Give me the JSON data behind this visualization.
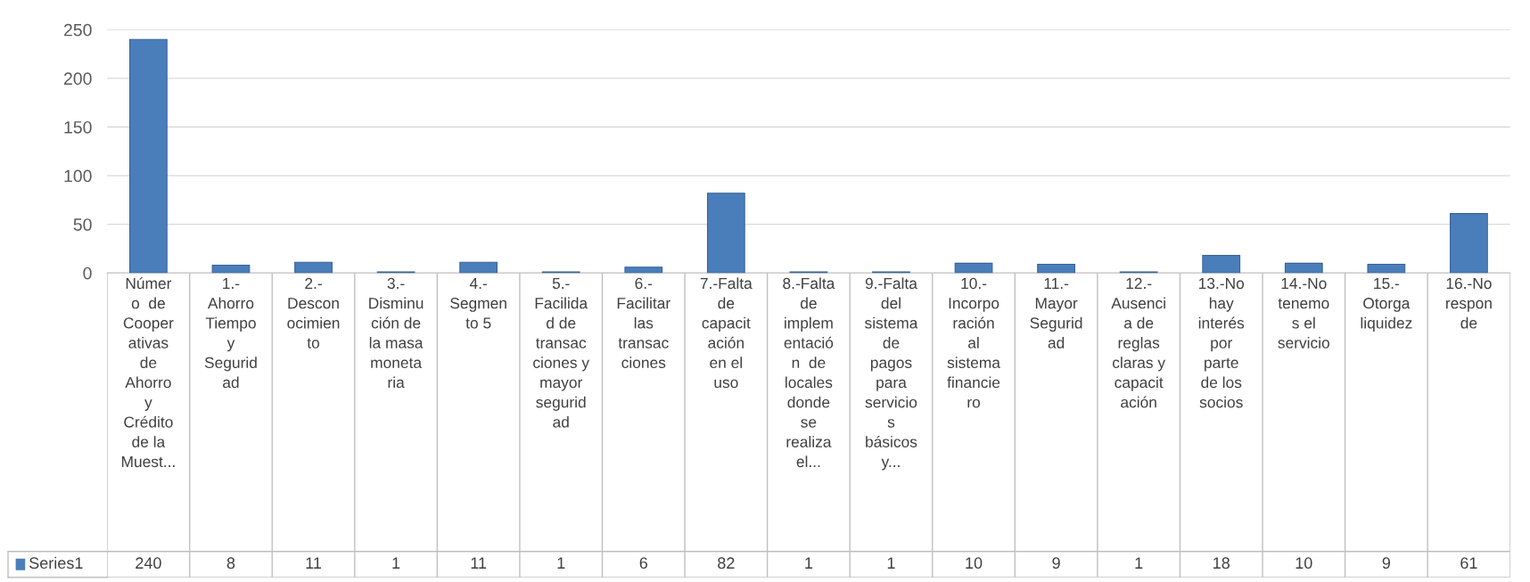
{
  "chart_data": {
    "type": "bar",
    "categories": [
      "Númer\no  de\nCooper\nativas\nde\nAhorro\ny\nCrédito\nde la\nMuest...",
      "1.-\nAhorro\nTiempo\ny\nSegurid\nad",
      "2.-\nDescon\nocimien\nto",
      "3.-\nDisminu\nción de\nla masa\nmoneta\nria",
      "4.-\nSegmen\nto 5",
      "5.-\nFacilida\nd de\ntransac\nciones y\nmayor\nsegurid\nad",
      "6.-\nFacilitar\nlas\ntransac\nciones",
      "7.-Falta\nde\ncapacit\nación\nen el\nuso",
      "8.-Falta\nde\nimplem\nentació\nn  de\nlocales\ndonde\nse\nrealiza\nel...",
      "9.-Falta\ndel\nsistema\nde\npagos\npara\nservicio\ns\nbásicos\ny...",
      "10.-\nIncorpo\nración\nal\nsistema\nfinancie\nro",
      "11.-\nMayor\nSegurid\nad",
      "12.-\nAusenci\na de\nreglas\nclaras y\ncapacit\nación",
      "13.-No\nhay\ninterés\npor\nparte\nde los\nsocios",
      "14.-No\ntenemo\ns el\nservicio",
      "15.-\nOtorga\nliquidez",
      "16.-No\nrespon\nde"
    ],
    "series": [
      {
        "name": "Series1",
        "color": "#4a7ebb",
        "values": [
          240,
          8,
          11,
          1,
          11,
          1,
          6,
          82,
          1,
          1,
          10,
          9,
          1,
          18,
          10,
          9,
          61
        ]
      }
    ],
    "ylim": [
      0,
      250
    ],
    "yticks": [
      0,
      50,
      100,
      150,
      200,
      250
    ],
    "grid": "y",
    "data_labels": true,
    "legend": "bottom left"
  }
}
